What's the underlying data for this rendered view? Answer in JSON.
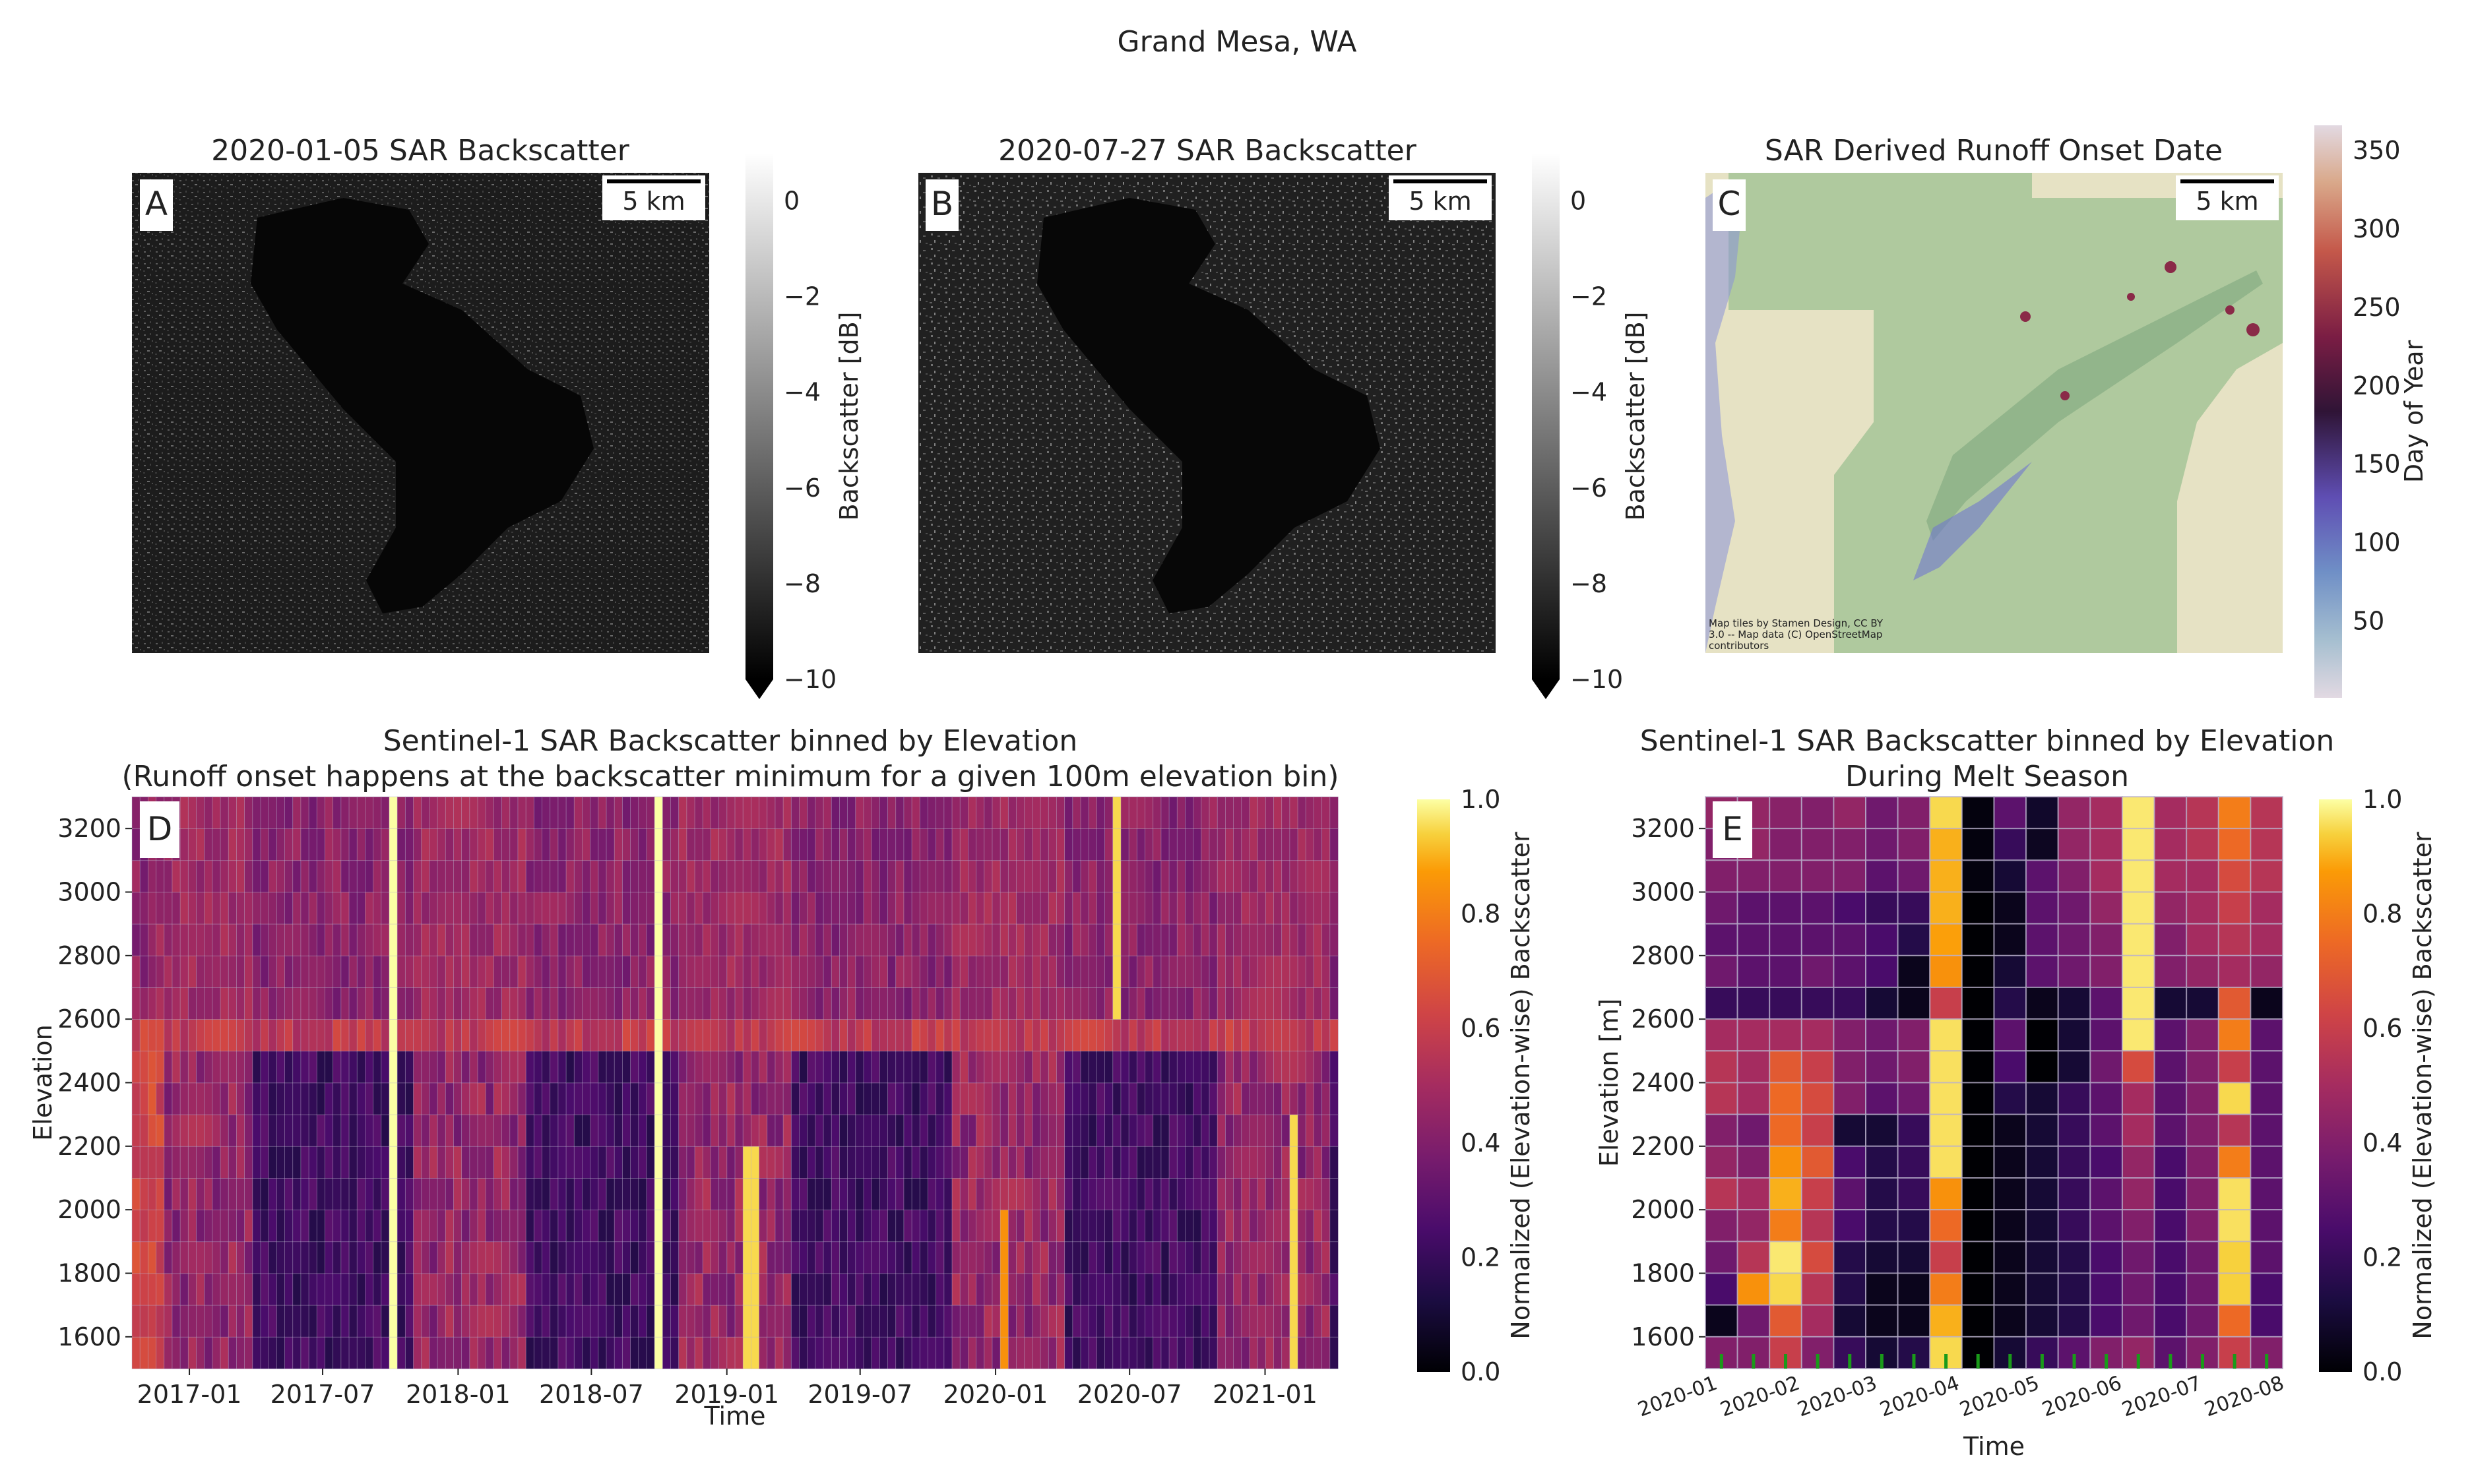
{
  "figure": {
    "suptitle": "Grand Mesa, WA"
  },
  "panels": {
    "a": {
      "letter": "A",
      "title": "2020-01-05 SAR Backscatter",
      "scalebar": "5 km"
    },
    "b": {
      "letter": "B",
      "title": "2020-07-27 SAR Backscatter",
      "scalebar": "5 km"
    },
    "c": {
      "letter": "C",
      "title": "SAR Derived Runoff Onset Date",
      "scalebar": "5 km",
      "attribution": [
        "Map tiles by Stamen Design, CC BY",
        "3.0 -- Map data (C) OpenStreetMap",
        "contributors"
      ]
    },
    "d": {
      "letter": "D",
      "title_line1": "Sentinel-1 SAR Backscatter binned by Elevation",
      "title_line2": "(Runoff onset happens at the backscatter minimum for a given 100m elevation bin)"
    },
    "e": {
      "letter": "E",
      "title_line1": "Sentinel-1 SAR Backscatter binned by Elevation",
      "title_line2": "During Melt Season"
    }
  },
  "colorbars": {
    "backscatter": {
      "label": "Backscatter [dB]",
      "ticks": [
        "0",
        "−2",
        "−4",
        "−6",
        "−8",
        "−10"
      ],
      "range": [
        -10,
        1
      ]
    },
    "doy": {
      "label": "Day of Year",
      "ticks": [
        "50",
        "100",
        "150",
        "200",
        "250",
        "300",
        "350"
      ],
      "range": [
        1,
        366
      ]
    },
    "norm": {
      "label": "Normalized (Elevation-wise) Backscatter",
      "ticks": [
        "0.0",
        "0.2",
        "0.4",
        "0.6",
        "0.8",
        "1.0"
      ],
      "range": [
        0,
        1
      ]
    }
  },
  "chart_data": [
    {
      "type": "heatmap",
      "panel": "D",
      "title": "Sentinel-1 SAR Backscatter binned by Elevation (Runoff onset happens at the backscatter minimum for a given 100m elevation bin)",
      "xlabel": "Time",
      "ylabel": "Elevation",
      "x_ticks": [
        "2017-01",
        "2017-07",
        "2018-01",
        "2018-07",
        "2019-01",
        "2019-07",
        "2020-01",
        "2020-07",
        "2021-01"
      ],
      "x_range": [
        "2016-10-15",
        "2021-04-10"
      ],
      "y_ticks": [
        1600,
        1800,
        2000,
        2200,
        2400,
        2600,
        2800,
        3000,
        3200
      ],
      "y_range": [
        1500,
        3300
      ],
      "colorbar_label": "Normalized (Elevation-wise) Backscatter",
      "clim": [
        0,
        1
      ],
      "elevation_bins_m": [
        1550,
        1650,
        1750,
        1850,
        1950,
        2050,
        2150,
        2250,
        2350,
        2450,
        2550,
        2650,
        2750,
        2850,
        2950,
        3050,
        3150,
        3250
      ],
      "bright_columns": [
        {
          "date": "2017-10-02",
          "value": 1.0
        },
        {
          "date": "2018-10-03",
          "value": 1.0
        },
        {
          "date": "2019-02-02",
          "value": 0.95,
          "rows_below_m": 2200
        },
        {
          "date": "2020-01-10",
          "value": 0.85,
          "rows_below_m": 2000
        },
        {
          "date": "2020-06-10",
          "value": 0.95,
          "rows_above_m": 2600
        },
        {
          "date": "2021-02-05",
          "value": 0.95,
          "rows_below_m": 2300
        }
      ]
    },
    {
      "type": "heatmap",
      "panel": "E",
      "title": "Sentinel-1 SAR Backscatter binned by Elevation During Melt Season",
      "xlabel": "Time",
      "ylabel": "Elevation [m]",
      "x_ticks": [
        "2020-01",
        "2020-02",
        "2020-03",
        "2020-04",
        "2020-05",
        "2020-06",
        "2020-07",
        "2020-08"
      ],
      "y_ticks": [
        1600,
        1800,
        2000,
        2200,
        2400,
        2600,
        2800,
        3000,
        3200
      ],
      "y_range": [
        1500,
        3300
      ],
      "colorbar_label": "Normalized (Elevation-wise) Backscatter",
      "clim": [
        0,
        1
      ],
      "columns": [
        "2020-01-05",
        "2020-01-17",
        "2020-01-29",
        "2020-02-10",
        "2020-02-22",
        "2020-03-05",
        "2020-03-17",
        "2020-03-29",
        "2020-04-10",
        "2020-04-22",
        "2020-05-04",
        "2020-05-16",
        "2020-05-28",
        "2020-06-09",
        "2020-06-21",
        "2020-07-03",
        "2020-07-15",
        "2020-07-27"
      ],
      "elevation_bins_m": [
        1550,
        1650,
        1750,
        1850,
        1950,
        2050,
        2150,
        2250,
        2350,
        2450,
        2550,
        2650,
        2750,
        2850,
        2950,
        3050,
        3150,
        3250
      ],
      "values_rows_top_to_bottom": [
        [
          0.45,
          0.45,
          0.42,
          0.4,
          0.45,
          0.35,
          0.4,
          0.95,
          0.02,
          0.3,
          0.08,
          0.45,
          0.5,
          0.97,
          0.5,
          0.55,
          0.8,
          0.55
        ],
        [
          0.4,
          0.45,
          0.4,
          0.4,
          0.4,
          0.35,
          0.4,
          0.9,
          0.02,
          0.2,
          0.06,
          0.45,
          0.5,
          0.97,
          0.5,
          0.55,
          0.75,
          0.55
        ],
        [
          0.4,
          0.4,
          0.4,
          0.4,
          0.4,
          0.3,
          0.35,
          0.9,
          0.02,
          0.1,
          0.3,
          0.4,
          0.5,
          0.97,
          0.5,
          0.5,
          0.65,
          0.55
        ],
        [
          0.35,
          0.3,
          0.3,
          0.3,
          0.25,
          0.2,
          0.2,
          0.9,
          0.0,
          0.05,
          0.3,
          0.35,
          0.45,
          0.97,
          0.45,
          0.5,
          0.6,
          0.5
        ],
        [
          0.3,
          0.3,
          0.3,
          0.3,
          0.3,
          0.25,
          0.15,
          0.88,
          0.0,
          0.05,
          0.3,
          0.35,
          0.4,
          0.97,
          0.4,
          0.5,
          0.55,
          0.5
        ],
        [
          0.35,
          0.3,
          0.3,
          0.35,
          0.3,
          0.25,
          0.05,
          0.85,
          0.0,
          0.1,
          0.3,
          0.35,
          0.4,
          0.97,
          0.4,
          0.45,
          0.5,
          0.45
        ],
        [
          0.2,
          0.2,
          0.2,
          0.2,
          0.2,
          0.1,
          0.05,
          0.6,
          0.0,
          0.15,
          0.05,
          0.1,
          0.3,
          0.97,
          0.1,
          0.1,
          0.7,
          0.05
        ],
        [
          0.5,
          0.5,
          0.5,
          0.5,
          0.4,
          0.35,
          0.4,
          0.96,
          0.0,
          0.3,
          0.0,
          0.1,
          0.3,
          0.97,
          0.3,
          0.4,
          0.8,
          0.3
        ],
        [
          0.55,
          0.5,
          0.7,
          0.6,
          0.4,
          0.35,
          0.4,
          0.96,
          0.0,
          0.25,
          0.0,
          0.1,
          0.35,
          0.65,
          0.3,
          0.4,
          0.6,
          0.3
        ],
        [
          0.55,
          0.5,
          0.75,
          0.65,
          0.4,
          0.3,
          0.35,
          0.96,
          0.0,
          0.15,
          0.1,
          0.2,
          0.3,
          0.5,
          0.3,
          0.4,
          0.95,
          0.3
        ],
        [
          0.4,
          0.35,
          0.75,
          0.6,
          0.1,
          0.1,
          0.2,
          0.96,
          0.0,
          0.05,
          0.1,
          0.2,
          0.3,
          0.5,
          0.3,
          0.4,
          0.55,
          0.3
        ],
        [
          0.45,
          0.4,
          0.85,
          0.7,
          0.25,
          0.15,
          0.2,
          0.96,
          0.0,
          0.05,
          0.1,
          0.2,
          0.25,
          0.45,
          0.25,
          0.4,
          0.8,
          0.3
        ],
        [
          0.55,
          0.5,
          0.9,
          0.6,
          0.3,
          0.15,
          0.2,
          0.85,
          0.0,
          0.05,
          0.1,
          0.2,
          0.3,
          0.45,
          0.25,
          0.4,
          0.96,
          0.3
        ],
        [
          0.4,
          0.45,
          0.8,
          0.55,
          0.25,
          0.15,
          0.15,
          0.75,
          0.0,
          0.05,
          0.1,
          0.2,
          0.3,
          0.4,
          0.25,
          0.4,
          0.96,
          0.3
        ],
        [
          0.35,
          0.55,
          0.97,
          0.65,
          0.15,
          0.1,
          0.1,
          0.6,
          0.0,
          0.05,
          0.1,
          0.15,
          0.25,
          0.35,
          0.25,
          0.35,
          0.94,
          0.3
        ],
        [
          0.25,
          0.85,
          0.95,
          0.55,
          0.15,
          0.05,
          0.05,
          0.8,
          0.0,
          0.05,
          0.1,
          0.15,
          0.25,
          0.35,
          0.25,
          0.35,
          0.94,
          0.25
        ],
        [
          0.05,
          0.35,
          0.7,
          0.5,
          0.1,
          0.05,
          0.05,
          0.9,
          0.0,
          0.05,
          0.1,
          0.15,
          0.25,
          0.35,
          0.25,
          0.35,
          0.75,
          0.25
        ],
        [
          0.4,
          0.4,
          0.6,
          0.4,
          0.2,
          0.1,
          0.15,
          0.95,
          0.0,
          0.1,
          0.2,
          0.3,
          0.4,
          0.45,
          0.3,
          0.4,
          0.6,
          0.4
        ]
      ]
    }
  ]
}
